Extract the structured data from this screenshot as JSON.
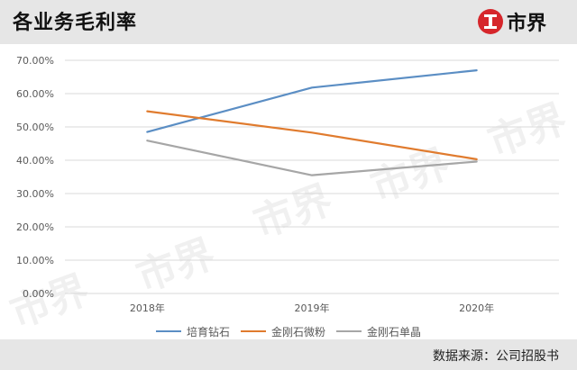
{
  "header": {
    "title": "各业务毛利率",
    "logo_text": "市界"
  },
  "footer": {
    "source": "数据来源：公司招股书"
  },
  "watermark": "市界",
  "chart_data": {
    "type": "line",
    "categories": [
      "2018年",
      "2019年",
      "2020年"
    ],
    "series": [
      {
        "name": "培育钻石",
        "values": [
          48.5,
          61.8,
          67.0
        ],
        "color": "#5b8ec4"
      },
      {
        "name": "金刚石微粉",
        "values": [
          54.7,
          48.3,
          40.3
        ],
        "color": "#e07b2e"
      },
      {
        "name": "金刚石单晶",
        "values": [
          45.9,
          35.5,
          39.6
        ],
        "color": "#a6a6a6"
      }
    ],
    "y_ticks": [
      "0.00%",
      "10.00%",
      "20.00%",
      "30.00%",
      "40.00%",
      "50.00%",
      "60.00%",
      "70.00%"
    ],
    "ylim": [
      0,
      70
    ],
    "grid": true,
    "legend_position": "bottom"
  }
}
